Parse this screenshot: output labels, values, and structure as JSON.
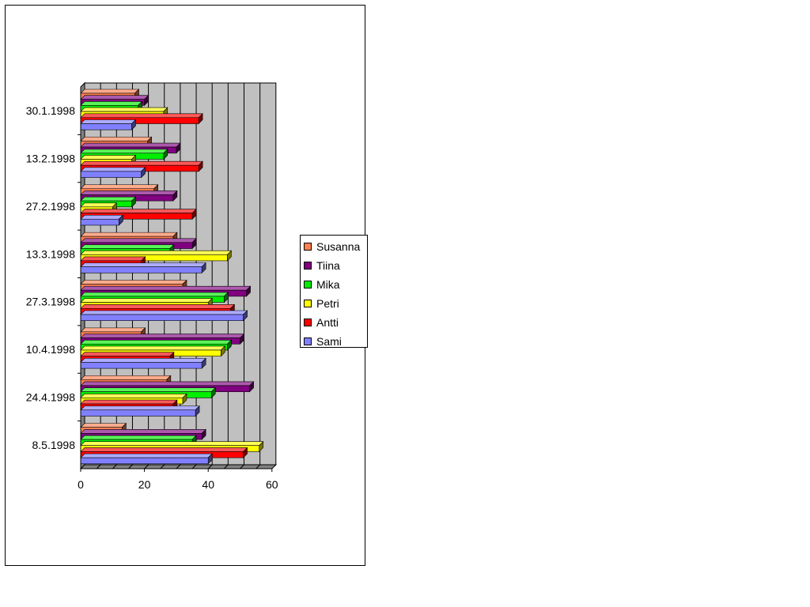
{
  "chart_data": {
    "type": "bar",
    "orientation": "horizontal",
    "style": "3d",
    "categories": [
      "30.1.1998",
      "13.2.1998",
      "27.2.1998",
      "13.3.1998",
      "27.3.1998",
      "10.4.1998",
      "24.4.1998",
      "8.5.1998"
    ],
    "series": [
      {
        "name": "Susanna",
        "color": "#FF8050",
        "values": [
          17,
          21,
          23,
          29,
          32,
          19,
          27,
          13
        ]
      },
      {
        "name": "Tiina",
        "color": "#800080",
        "values": [
          20,
          30,
          29,
          35,
          52,
          50,
          53,
          38
        ]
      },
      {
        "name": "Mika",
        "color": "#00EE00",
        "values": [
          18,
          26,
          16,
          28,
          45,
          46,
          41,
          35
        ]
      },
      {
        "name": "Petri",
        "color": "#FFFF00",
        "values": [
          26,
          16,
          10,
          46,
          40,
          44,
          32,
          56
        ]
      },
      {
        "name": "Antti",
        "color": "#FF0000",
        "values": [
          37,
          37,
          35,
          19,
          47,
          28,
          29,
          51
        ]
      },
      {
        "name": "Sami",
        "color": "#8080FF",
        "values": [
          16,
          19,
          12,
          38,
          51,
          38,
          36,
          40
        ]
      }
    ],
    "x_ticks": [
      "0",
      "20",
      "40",
      "60"
    ],
    "xlim": [
      0,
      60
    ],
    "grid": true,
    "legend_position": "right",
    "title": "",
    "xlabel": "",
    "ylabel": ""
  }
}
